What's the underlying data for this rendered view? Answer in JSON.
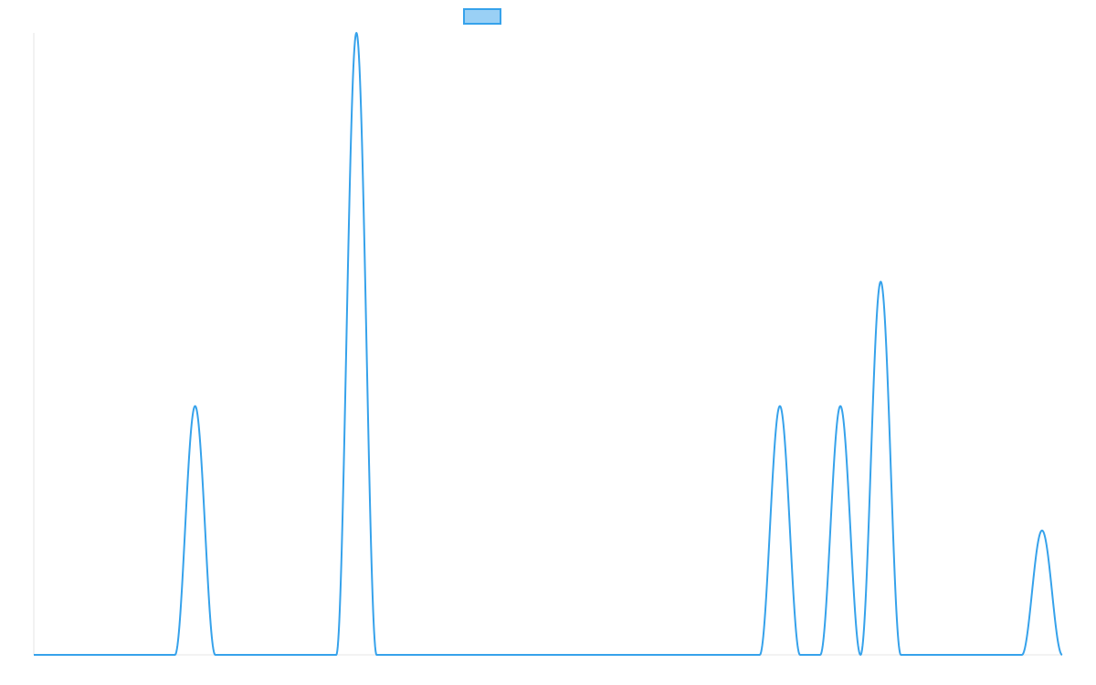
{
  "chart_data": {
    "type": "line",
    "title": "",
    "xlabel": "",
    "ylabel": "",
    "legend": {
      "placement": "top-center",
      "label": ""
    },
    "xlim": [
      0,
      51
    ],
    "ylim": [
      0,
      5
    ],
    "grid": false,
    "series": [
      {
        "color": "#36a2eb",
        "fill_color": "#9ad0f5",
        "points": [
          [
            0,
            0
          ],
          [
            7,
            0
          ],
          [
            8,
            2
          ],
          [
            9,
            0
          ],
          [
            15,
            0
          ],
          [
            16,
            5
          ],
          [
            17,
            0
          ],
          [
            36,
            0
          ],
          [
            37,
            2
          ],
          [
            38,
            0
          ],
          [
            39,
            0
          ],
          [
            40,
            2
          ],
          [
            41,
            0
          ],
          [
            42,
            3
          ],
          [
            43,
            0
          ],
          [
            49,
            0
          ],
          [
            50,
            1
          ],
          [
            51,
            0
          ]
        ]
      }
    ]
  }
}
